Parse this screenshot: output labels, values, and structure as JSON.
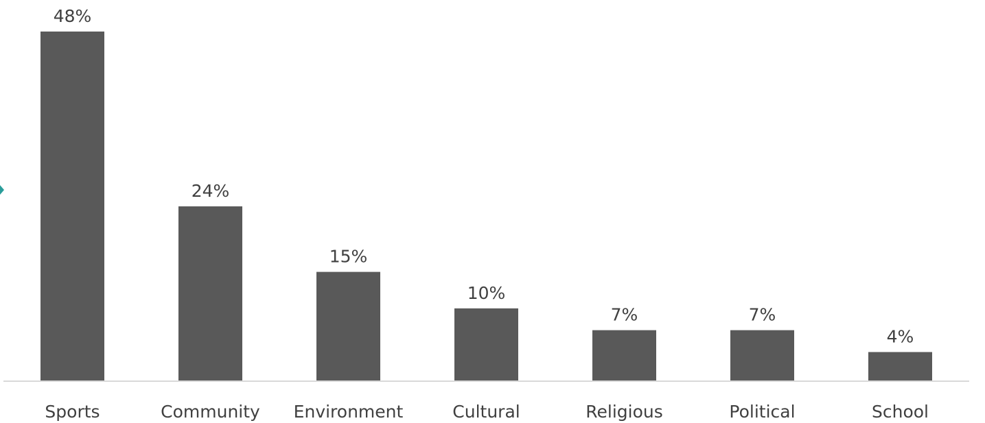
{
  "chart_data": {
    "type": "bar",
    "categories": [
      "Sports",
      "Community",
      "Environment",
      "Cultural",
      "Religious",
      "Political",
      "School"
    ],
    "values": [
      48,
      24,
      15,
      10,
      7,
      7,
      4
    ],
    "value_labels": [
      "48%",
      "24%",
      "15%",
      "10%",
      "7%",
      "7%",
      "4%"
    ],
    "unit": "%",
    "title": "",
    "xlabel": "",
    "ylabel": "",
    "ylim": [
      0,
      48
    ],
    "grid": false,
    "legend": "none",
    "colors": {
      "bar": "#595959",
      "text": "#404040",
      "axis": "#d9d9d9",
      "marker": "#2a9d9a"
    }
  }
}
